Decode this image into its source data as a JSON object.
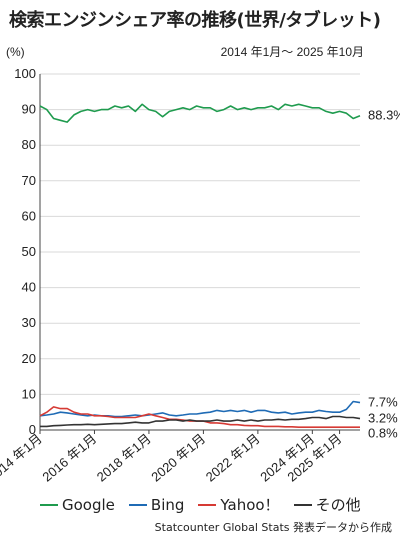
{
  "chart_data": {
    "type": "line",
    "title": "検索エンジンシェア率の推移(世界/タブレット)",
    "yunit": "(%)",
    "period": "2014 年1月〜 2025 年10月",
    "ylim": [
      0,
      100
    ],
    "yticks": [
      "0",
      "10",
      "20",
      "30",
      "40",
      "50",
      "60",
      "70",
      "80",
      "90",
      "100"
    ],
    "xticks": [
      "2014 年1月",
      "2016 年1月",
      "2018 年1月",
      "2020 年1月",
      "2022 年1月",
      "2024 年1月",
      "2025 年1月"
    ],
    "xtick_dates": [
      "2014-01",
      "2016-01",
      "2018-01",
      "2020-01",
      "2022-01",
      "2024-01",
      "2025-01"
    ],
    "x_range": [
      "2014-01",
      "2025-10"
    ],
    "end_labels": [
      "88.3%",
      "7.7%",
      "3.2%",
      "0.8%"
    ],
    "series": [
      {
        "name": "Google",
        "color": "#1f9b4e",
        "end_label": "88.3%",
        "points": [
          [
            "2014-01",
            91.0
          ],
          [
            "2014-04",
            90.0
          ],
          [
            "2014-07",
            87.5
          ],
          [
            "2014-10",
            87.0
          ],
          [
            "2015-01",
            86.5
          ],
          [
            "2015-04",
            88.5
          ],
          [
            "2015-07",
            89.5
          ],
          [
            "2015-10",
            90.0
          ],
          [
            "2016-01",
            89.5
          ],
          [
            "2016-04",
            90.0
          ],
          [
            "2016-07",
            90.0
          ],
          [
            "2016-10",
            91.0
          ],
          [
            "2017-01",
            90.5
          ],
          [
            "2017-04",
            91.0
          ],
          [
            "2017-07",
            89.5
          ],
          [
            "2017-10",
            91.5
          ],
          [
            "2018-01",
            90.0
          ],
          [
            "2018-04",
            89.5
          ],
          [
            "2018-07",
            88.0
          ],
          [
            "2018-10",
            89.5
          ],
          [
            "2019-01",
            90.0
          ],
          [
            "2019-04",
            90.5
          ],
          [
            "2019-07",
            90.0
          ],
          [
            "2019-10",
            91.0
          ],
          [
            "2020-01",
            90.5
          ],
          [
            "2020-04",
            90.5
          ],
          [
            "2020-07",
            89.5
          ],
          [
            "2020-10",
            90.0
          ],
          [
            "2021-01",
            91.0
          ],
          [
            "2021-04",
            90.0
          ],
          [
            "2021-07",
            90.5
          ],
          [
            "2021-10",
            90.0
          ],
          [
            "2022-01",
            90.5
          ],
          [
            "2022-04",
            90.5
          ],
          [
            "2022-07",
            91.0
          ],
          [
            "2022-10",
            90.0
          ],
          [
            "2023-01",
            91.5
          ],
          [
            "2023-04",
            91.0
          ],
          [
            "2023-07",
            91.5
          ],
          [
            "2023-10",
            91.0
          ],
          [
            "2024-01",
            90.5
          ],
          [
            "2024-04",
            90.5
          ],
          [
            "2024-07",
            89.5
          ],
          [
            "2024-10",
            89.0
          ],
          [
            "2025-01",
            89.5
          ],
          [
            "2025-04",
            89.0
          ],
          [
            "2025-07",
            87.5
          ],
          [
            "2025-10",
            88.3
          ]
        ]
      },
      {
        "name": "Bing",
        "color": "#1f6bb5",
        "end_label": "7.7%",
        "points": [
          [
            "2014-01",
            4.0
          ],
          [
            "2014-04",
            4.2
          ],
          [
            "2014-07",
            4.5
          ],
          [
            "2014-10",
            5.0
          ],
          [
            "2015-01",
            4.8
          ],
          [
            "2015-04",
            4.5
          ],
          [
            "2015-07",
            4.2
          ],
          [
            "2015-10",
            4.0
          ],
          [
            "2016-01",
            4.2
          ],
          [
            "2016-04",
            4.0
          ],
          [
            "2016-07",
            4.0
          ],
          [
            "2016-10",
            3.8
          ],
          [
            "2017-01",
            3.8
          ],
          [
            "2017-04",
            4.0
          ],
          [
            "2017-07",
            4.2
          ],
          [
            "2017-10",
            4.0
          ],
          [
            "2018-01",
            4.2
          ],
          [
            "2018-04",
            4.5
          ],
          [
            "2018-07",
            4.8
          ],
          [
            "2018-10",
            4.2
          ],
          [
            "2019-01",
            4.0
          ],
          [
            "2019-04",
            4.2
          ],
          [
            "2019-07",
            4.5
          ],
          [
            "2019-10",
            4.5
          ],
          [
            "2020-01",
            4.8
          ],
          [
            "2020-04",
            5.0
          ],
          [
            "2020-07",
            5.5
          ],
          [
            "2020-10",
            5.2
          ],
          [
            "2021-01",
            5.5
          ],
          [
            "2021-04",
            5.2
          ],
          [
            "2021-07",
            5.5
          ],
          [
            "2021-10",
            5.0
          ],
          [
            "2022-01",
            5.5
          ],
          [
            "2022-04",
            5.5
          ],
          [
            "2022-07",
            5.0
          ],
          [
            "2022-10",
            4.8
          ],
          [
            "2023-01",
            5.0
          ],
          [
            "2023-04",
            4.5
          ],
          [
            "2023-07",
            4.8
          ],
          [
            "2023-10",
            5.0
          ],
          [
            "2024-01",
            5.0
          ],
          [
            "2024-04",
            5.5
          ],
          [
            "2024-07",
            5.2
          ],
          [
            "2024-10",
            5.0
          ],
          [
            "2025-01",
            5.0
          ],
          [
            "2025-04",
            5.8
          ],
          [
            "2025-07",
            8.0
          ],
          [
            "2025-10",
            7.7
          ]
        ]
      },
      {
        "name": "Yahoo！",
        "color": "#d63a34",
        "end_label": "0.8%",
        "points": [
          [
            "2014-01",
            4.0
          ],
          [
            "2014-04",
            5.0
          ],
          [
            "2014-07",
            6.5
          ],
          [
            "2014-10",
            6.0
          ],
          [
            "2015-01",
            6.0
          ],
          [
            "2015-04",
            5.0
          ],
          [
            "2015-07",
            4.5
          ],
          [
            "2015-10",
            4.5
          ],
          [
            "2016-01",
            4.0
          ],
          [
            "2016-04",
            4.0
          ],
          [
            "2016-07",
            3.8
          ],
          [
            "2016-10",
            3.5
          ],
          [
            "2017-01",
            3.5
          ],
          [
            "2017-04",
            3.5
          ],
          [
            "2017-07",
            3.5
          ],
          [
            "2017-10",
            4.0
          ],
          [
            "2018-01",
            4.5
          ],
          [
            "2018-04",
            4.0
          ],
          [
            "2018-07",
            3.5
          ],
          [
            "2018-10",
            3.0
          ],
          [
            "2019-01",
            3.0
          ],
          [
            "2019-04",
            2.8
          ],
          [
            "2019-07",
            2.5
          ],
          [
            "2019-10",
            2.5
          ],
          [
            "2020-01",
            2.5
          ],
          [
            "2020-04",
            2.0
          ],
          [
            "2020-07",
            2.0
          ],
          [
            "2020-10",
            1.8
          ],
          [
            "2021-01",
            1.5
          ],
          [
            "2021-04",
            1.5
          ],
          [
            "2021-07",
            1.3
          ],
          [
            "2021-10",
            1.2
          ],
          [
            "2022-01",
            1.2
          ],
          [
            "2022-04",
            1.0
          ],
          [
            "2022-07",
            1.0
          ],
          [
            "2022-10",
            1.0
          ],
          [
            "2023-01",
            0.9
          ],
          [
            "2023-04",
            0.9
          ],
          [
            "2023-07",
            0.8
          ],
          [
            "2023-10",
            0.8
          ],
          [
            "2024-01",
            0.8
          ],
          [
            "2024-04",
            0.8
          ],
          [
            "2024-07",
            0.8
          ],
          [
            "2024-10",
            0.8
          ],
          [
            "2025-01",
            0.8
          ],
          [
            "2025-04",
            0.8
          ],
          [
            "2025-07",
            0.8
          ],
          [
            "2025-10",
            0.8
          ]
        ]
      },
      {
        "name": "その他",
        "color": "#333333",
        "end_label": "3.2%",
        "points": [
          [
            "2014-01",
            1.0
          ],
          [
            "2014-04",
            1.0
          ],
          [
            "2014-07",
            1.2
          ],
          [
            "2014-10",
            1.3
          ],
          [
            "2015-01",
            1.4
          ],
          [
            "2015-04",
            1.5
          ],
          [
            "2015-07",
            1.5
          ],
          [
            "2015-10",
            1.6
          ],
          [
            "2016-01",
            1.5
          ],
          [
            "2016-04",
            1.6
          ],
          [
            "2016-07",
            1.7
          ],
          [
            "2016-10",
            1.8
          ],
          [
            "2017-01",
            1.8
          ],
          [
            "2017-04",
            2.0
          ],
          [
            "2017-07",
            2.2
          ],
          [
            "2017-10",
            2.0
          ],
          [
            "2018-01",
            2.0
          ],
          [
            "2018-04",
            2.5
          ],
          [
            "2018-07",
            2.5
          ],
          [
            "2018-10",
            2.8
          ],
          [
            "2019-01",
            2.8
          ],
          [
            "2019-04",
            2.5
          ],
          [
            "2019-07",
            2.8
          ],
          [
            "2019-10",
            2.5
          ],
          [
            "2020-01",
            2.5
          ],
          [
            "2020-04",
            2.5
          ],
          [
            "2020-07",
            2.8
          ],
          [
            "2020-10",
            2.5
          ],
          [
            "2021-01",
            2.5
          ],
          [
            "2021-04",
            2.8
          ],
          [
            "2021-07",
            2.5
          ],
          [
            "2021-10",
            2.8
          ],
          [
            "2022-01",
            2.5
          ],
          [
            "2022-04",
            2.8
          ],
          [
            "2022-07",
            2.8
          ],
          [
            "2022-10",
            3.0
          ],
          [
            "2023-01",
            2.8
          ],
          [
            "2023-04",
            3.0
          ],
          [
            "2023-07",
            3.0
          ],
          [
            "2023-10",
            3.2
          ],
          [
            "2024-01",
            3.5
          ],
          [
            "2024-04",
            3.5
          ],
          [
            "2024-07",
            3.2
          ],
          [
            "2024-10",
            3.8
          ],
          [
            "2025-01",
            3.8
          ],
          [
            "2025-04",
            3.5
          ],
          [
            "2025-07",
            3.5
          ],
          [
            "2025-10",
            3.2
          ]
        ]
      }
    ],
    "source": "Statcounter Global Stats 発表データから作成"
  }
}
